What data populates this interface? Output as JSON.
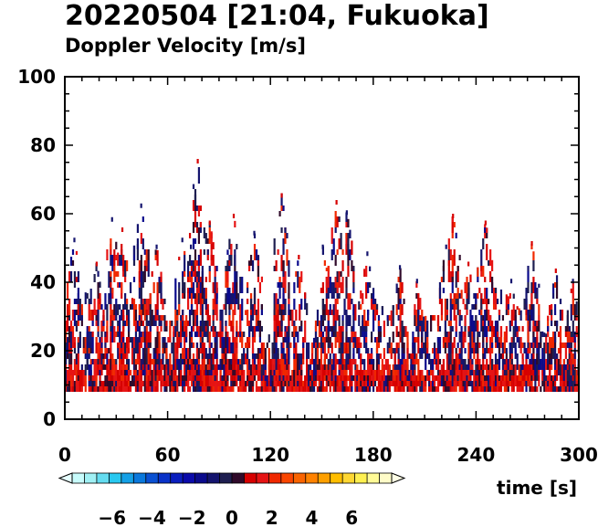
{
  "chart_data": {
    "type": "heatmap",
    "title": "20220504 [21:04, Fukuoka]",
    "subtitle": "Doppler Velocity [m/s]",
    "xlabel": "time [s]",
    "ylabel": "",
    "xlim": [
      0,
      300
    ],
    "ylim": [
      0,
      100
    ],
    "x_ticks": [
      "0",
      "60",
      "120",
      "180",
      "240",
      "300"
    ],
    "y_ticks": [
      "0",
      "20",
      "40",
      "60",
      "80",
      "100"
    ],
    "grid": false,
    "colorbar": {
      "range": [
        -8,
        8
      ],
      "tick_labels": [
        "−6",
        "−4",
        "−2",
        "0",
        "2",
        "4",
        "6"
      ],
      "colors": [
        "#c8fcfc",
        "#a0f0f4",
        "#64dcf0",
        "#28c8f0",
        "#14a0e6",
        "#0a78dc",
        "#0a50d2",
        "#0a32c8",
        "#0a1ebe",
        "#0a0aaa",
        "#0a0a8c",
        "#14146e",
        "#1e1e50",
        "#300a2a",
        "#d70000",
        "#e61414",
        "#f02800",
        "#fa4600",
        "#fa6400",
        "#ff8200",
        "#ffa000",
        "#ffbe00",
        "#ffd732",
        "#fff050",
        "#fffa96",
        "#fffcc8"
      ]
    },
    "field": {
      "x_range": [
        0,
        300
      ],
      "height_range_min": 8,
      "typical_top_range": [
        20,
        40
      ],
      "max_height_observed": 75,
      "description_values": {
        "lower_band": [
          8,
          12
        ],
        "dominant_sign_near_ground": "positive"
      },
      "bursts": [
        {
          "x": 5,
          "top": 52
        },
        {
          "x": 18,
          "top": 45
        },
        {
          "x": 27,
          "top": 58
        },
        {
          "x": 33,
          "top": 55
        },
        {
          "x": 44,
          "top": 62
        },
        {
          "x": 53,
          "top": 50
        },
        {
          "x": 68,
          "top": 52
        },
        {
          "x": 73,
          "top": 50
        },
        {
          "x": 77,
          "top": 75
        },
        {
          "x": 84,
          "top": 57
        },
        {
          "x": 98,
          "top": 59
        },
        {
          "x": 110,
          "top": 54
        },
        {
          "x": 126,
          "top": 65
        },
        {
          "x": 136,
          "top": 47
        },
        {
          "x": 150,
          "top": 50
        },
        {
          "x": 158,
          "top": 63
        },
        {
          "x": 164,
          "top": 60
        },
        {
          "x": 176,
          "top": 48
        },
        {
          "x": 195,
          "top": 44
        },
        {
          "x": 205,
          "top": 40
        },
        {
          "x": 222,
          "top": 50
        },
        {
          "x": 226,
          "top": 59
        },
        {
          "x": 235,
          "top": 45
        },
        {
          "x": 245,
          "top": 57
        },
        {
          "x": 260,
          "top": 40
        },
        {
          "x": 272,
          "top": 51
        },
        {
          "x": 286,
          "top": 43
        },
        {
          "x": 296,
          "top": 40
        }
      ]
    }
  }
}
